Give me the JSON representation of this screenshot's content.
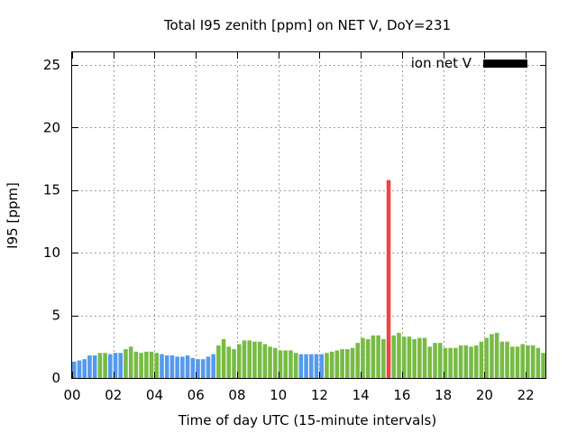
{
  "chart_data": {
    "type": "bar",
    "title": "Total I95 zenith [ppm] on NET V, DoY=231",
    "xlabel": "Time of day UTC (15-minute intervals)",
    "ylabel": "I95 [ppm]",
    "xlim": [
      0,
      23
    ],
    "ylim": [
      0,
      26
    ],
    "xticks": [
      "00",
      "02",
      "04",
      "06",
      "08",
      "10",
      "12",
      "14",
      "16",
      "18",
      "20",
      "22"
    ],
    "yticks": [
      "0",
      "5",
      "10",
      "15",
      "20",
      "25"
    ],
    "grid": true,
    "legend": {
      "position": "top-right",
      "entries": [
        {
          "label": "ion net V",
          "color": "#000000"
        }
      ]
    },
    "colors": {
      "blue": "#5599ee",
      "green": "#77bb44",
      "red": "#ee4444"
    },
    "bar_width_hours": 0.2,
    "series": [
      {
        "x": [
          0.0,
          0.25,
          0.5,
          0.75,
          1.0,
          1.25,
          1.5,
          1.75,
          2.0,
          2.25,
          2.5,
          2.75,
          3.0,
          3.25,
          3.5,
          3.75,
          4.0,
          4.25,
          4.5,
          4.75,
          5.0,
          5.25,
          5.5,
          5.75,
          6.0,
          6.25,
          6.5,
          6.75,
          7.0,
          7.25,
          7.5,
          7.75,
          8.0,
          8.25,
          8.5,
          8.75,
          9.0,
          9.25,
          9.5,
          9.75,
          10.0,
          10.25,
          10.5,
          10.75,
          11.0,
          11.25,
          11.5,
          11.75,
          12.0,
          12.25,
          12.5,
          12.75,
          13.0,
          13.25,
          13.5,
          13.75,
          14.0,
          14.25,
          14.5,
          14.75,
          15.0,
          15.25,
          15.5,
          15.75,
          16.0,
          16.25,
          16.5,
          16.75,
          17.0,
          17.25,
          17.5,
          17.75,
          18.0,
          18.25,
          18.5,
          18.75,
          19.0,
          19.25,
          19.5,
          19.75,
          20.0,
          20.25,
          20.5,
          20.75,
          21.0,
          21.25,
          21.5,
          21.75,
          22.0,
          22.25,
          22.5,
          22.75
        ],
        "values": [
          1.3,
          1.4,
          1.5,
          1.8,
          1.8,
          2.0,
          2.0,
          1.9,
          2.0,
          2.0,
          2.3,
          2.5,
          2.1,
          2.0,
          2.1,
          2.1,
          2.0,
          1.9,
          1.8,
          1.8,
          1.7,
          1.7,
          1.8,
          1.6,
          1.5,
          1.5,
          1.7,
          1.9,
          2.6,
          3.1,
          2.5,
          2.3,
          2.7,
          3.0,
          3.0,
          2.9,
          2.9,
          2.7,
          2.5,
          2.4,
          2.2,
          2.2,
          2.2,
          2.0,
          1.9,
          1.9,
          1.9,
          1.9,
          1.9,
          2.0,
          2.1,
          2.2,
          2.3,
          2.3,
          2.4,
          2.8,
          3.2,
          3.1,
          3.4,
          3.4,
          3.1,
          15.8,
          3.4,
          3.6,
          3.3,
          3.3,
          3.1,
          3.2,
          3.2,
          2.5,
          2.8,
          2.8,
          2.4,
          2.4,
          2.4,
          2.6,
          2.6,
          2.5,
          2.6,
          2.9,
          3.2,
          3.5,
          3.6,
          2.9,
          2.9,
          2.5,
          2.5,
          2.7,
          2.6,
          2.6,
          2.4,
          2.0
        ],
        "colors": [
          "blue",
          "blue",
          "blue",
          "blue",
          "blue",
          "green",
          "green",
          "blue",
          "blue",
          "blue",
          "green",
          "green",
          "green",
          "green",
          "green",
          "green",
          "green",
          "blue",
          "blue",
          "blue",
          "blue",
          "blue",
          "blue",
          "blue",
          "blue",
          "blue",
          "blue",
          "blue",
          "green",
          "green",
          "green",
          "green",
          "green",
          "green",
          "green",
          "green",
          "green",
          "green",
          "green",
          "green",
          "green",
          "green",
          "green",
          "green",
          "blue",
          "blue",
          "blue",
          "blue",
          "blue",
          "green",
          "green",
          "green",
          "green",
          "green",
          "green",
          "green",
          "green",
          "green",
          "green",
          "green",
          "green",
          "red",
          "green",
          "green",
          "green",
          "green",
          "green",
          "green",
          "green",
          "green",
          "green",
          "green",
          "green",
          "green",
          "green",
          "green",
          "green",
          "green",
          "green",
          "green",
          "green",
          "green",
          "green",
          "green",
          "green",
          "green",
          "green",
          "green",
          "green",
          "green",
          "green",
          "green"
        ]
      }
    ]
  }
}
